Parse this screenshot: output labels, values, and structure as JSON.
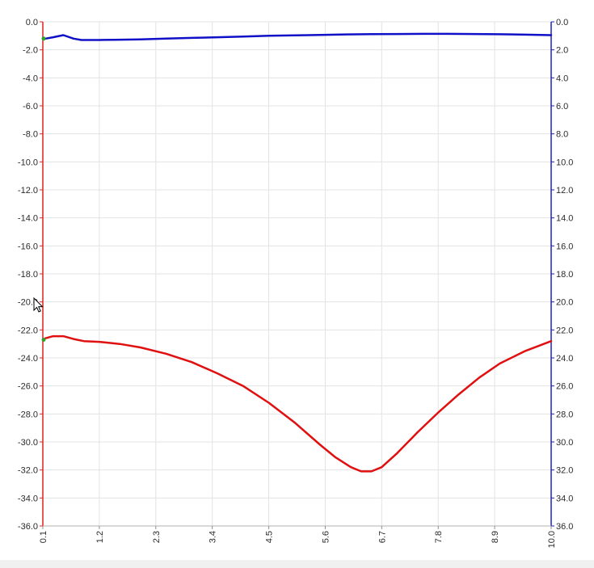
{
  "chart_data": {
    "type": "line",
    "title": "",
    "xlabel": "",
    "ylabel": "",
    "xlim": [
      0.1,
      10.0
    ],
    "ylim": [
      -36.0,
      0.0
    ],
    "x_ticks": [
      "0.1",
      "1.2",
      "2.3",
      "3.4",
      "4.5",
      "5.6",
      "6.7",
      "7.8",
      "8.9",
      "10.0"
    ],
    "y_ticks_left": [
      "0.0",
      "-2.0",
      "-4.0",
      "-6.0",
      "-8.0",
      "-10.0",
      "-12.0",
      "-14.0",
      "-16.0",
      "-18.0",
      "-20.0",
      "-22.0",
      "-24.0",
      "-26.0",
      "-28.0",
      "-30.0",
      "-32.0",
      "-34.0",
      "-36.0"
    ],
    "y_ticks_right": [
      "0.0",
      "2.0",
      "4.0",
      "6.0",
      "8.0",
      "10.0",
      "12.0",
      "14.0",
      "16.0",
      "18.0",
      "20.0",
      "22.0",
      "24.0",
      "26.0",
      "28.0",
      "30.0",
      "32.0",
      "34.0",
      "36.0"
    ],
    "grid": true,
    "legend": "none",
    "series": [
      {
        "color": "#1010c8",
        "x": [
          0.1,
          0.15,
          0.3,
          0.5,
          0.7,
          0.85,
          1.0,
          1.2,
          1.5,
          2.0,
          2.5,
          3.0,
          3.5,
          4.0,
          4.5,
          5.0,
          5.5,
          6.0,
          6.5,
          7.0,
          7.5,
          8.0,
          8.5,
          9.0,
          9.5,
          10.0
        ],
        "y": [
          -1.2,
          -1.2,
          -1.1,
          -0.95,
          -1.2,
          -1.3,
          -1.3,
          -1.3,
          -1.28,
          -1.25,
          -1.2,
          -1.15,
          -1.1,
          -1.05,
          -1.0,
          -0.97,
          -0.94,
          -0.9,
          -0.88,
          -0.87,
          -0.86,
          -0.86,
          -0.87,
          -0.89,
          -0.92,
          -0.95
        ]
      },
      {
        "color": "#e01010",
        "x": [
          0.1,
          0.15,
          0.3,
          0.5,
          0.7,
          0.9,
          1.2,
          1.6,
          2.0,
          2.5,
          3.0,
          3.5,
          4.0,
          4.5,
          5.0,
          5.5,
          5.8,
          6.1,
          6.3,
          6.5,
          6.7,
          7.0,
          7.4,
          7.8,
          8.2,
          8.6,
          9.0,
          9.5,
          10.0
        ],
        "y": [
          -22.7,
          -22.6,
          -22.45,
          -22.45,
          -22.65,
          -22.8,
          -22.85,
          -23.0,
          -23.25,
          -23.7,
          -24.3,
          -25.1,
          -26.0,
          -27.2,
          -28.6,
          -30.2,
          -31.1,
          -31.8,
          -32.1,
          -32.1,
          -31.8,
          -30.8,
          -29.3,
          -27.9,
          -26.6,
          -25.4,
          -24.4,
          -23.5,
          -22.8
        ]
      }
    ]
  }
}
